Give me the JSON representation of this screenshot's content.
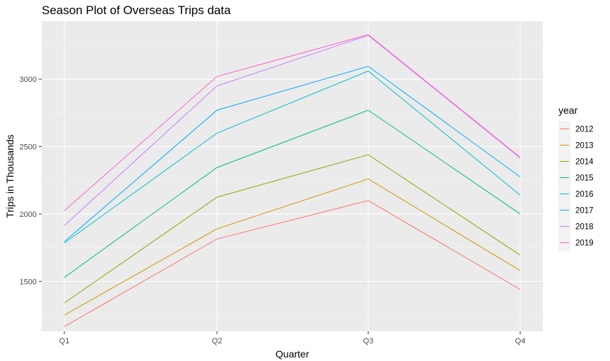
{
  "chart_data": {
    "type": "line",
    "title": "Season Plot of Overseas Trips data",
    "xlabel": "Quarter",
    "ylabel": "Trips in Thousands",
    "categories": [
      "Q1",
      "Q2",
      "Q3",
      "Q4"
    ],
    "y_ticks": [
      1500,
      2000,
      2500,
      3000
    ],
    "ylim": [
      1130,
      3430
    ],
    "grid": true,
    "legend": {
      "title": "year",
      "placement": "right"
    },
    "series": [
      {
        "name": "2012",
        "color": "#F8766D",
        "values": [
          1165,
          1815,
          2100,
          1440
        ]
      },
      {
        "name": "2013",
        "color": "#CD9600",
        "values": [
          1250,
          1890,
          2260,
          1580
        ]
      },
      {
        "name": "2014",
        "color": "#7CAE00",
        "values": [
          1340,
          2125,
          2440,
          1695
        ]
      },
      {
        "name": "2015",
        "color": "#00BE67",
        "values": [
          1530,
          2345,
          2770,
          2000
        ]
      },
      {
        "name": "2016",
        "color": "#00BFC4",
        "values": [
          1785,
          2600,
          3060,
          2140
        ]
      },
      {
        "name": "2017",
        "color": "#00A9FF",
        "values": [
          1795,
          2770,
          3095,
          2275
        ]
      },
      {
        "name": "2018",
        "color": "#C77CFF",
        "values": [
          1915,
          2950,
          3325,
          2415
        ]
      },
      {
        "name": "2019",
        "color": "#FF61CC",
        "values": [
          2025,
          3020,
          3330,
          2420
        ]
      }
    ]
  }
}
